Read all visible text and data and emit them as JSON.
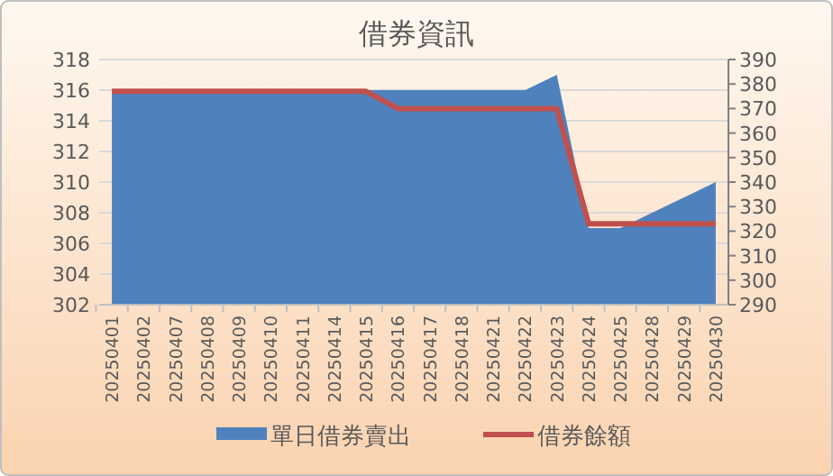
{
  "chart_data": {
    "type": "area",
    "title": "借券資訊",
    "categories": [
      "20250401",
      "20250402",
      "20250407",
      "20250408",
      "20250409",
      "20250410",
      "20250411",
      "20250414",
      "20250415",
      "20250416",
      "20250417",
      "20250418",
      "20250421",
      "20250422",
      "20250423",
      "20250424",
      "20250425",
      "20250428",
      "20250429",
      "20250430"
    ],
    "series": [
      {
        "name": "單日借券賣出",
        "color": "#4f81bd",
        "values": [
          316,
          316,
          316,
          316,
          316,
          316,
          316,
          316,
          316,
          316,
          316,
          316,
          316,
          316,
          317,
          307,
          307,
          308,
          309,
          310
        ]
      },
      {
        "name": "借券餘額",
        "type": "line",
        "axis": "y2",
        "color": "#c0504d",
        "values": [
          377,
          377,
          377,
          377,
          377,
          377,
          377,
          377,
          377,
          370,
          370,
          370,
          370,
          370,
          370,
          323,
          323,
          323,
          323,
          323
        ]
      }
    ],
    "ylim": [
      302,
      318
    ],
    "yticks": [
      302,
      304,
      306,
      308,
      310,
      312,
      314,
      316,
      318
    ],
    "y2lim": [
      290,
      390
    ],
    "y2ticks": [
      290,
      300,
      310,
      320,
      330,
      340,
      350,
      360,
      370,
      380,
      390
    ],
    "grid": "y",
    "legend": "bottom"
  }
}
